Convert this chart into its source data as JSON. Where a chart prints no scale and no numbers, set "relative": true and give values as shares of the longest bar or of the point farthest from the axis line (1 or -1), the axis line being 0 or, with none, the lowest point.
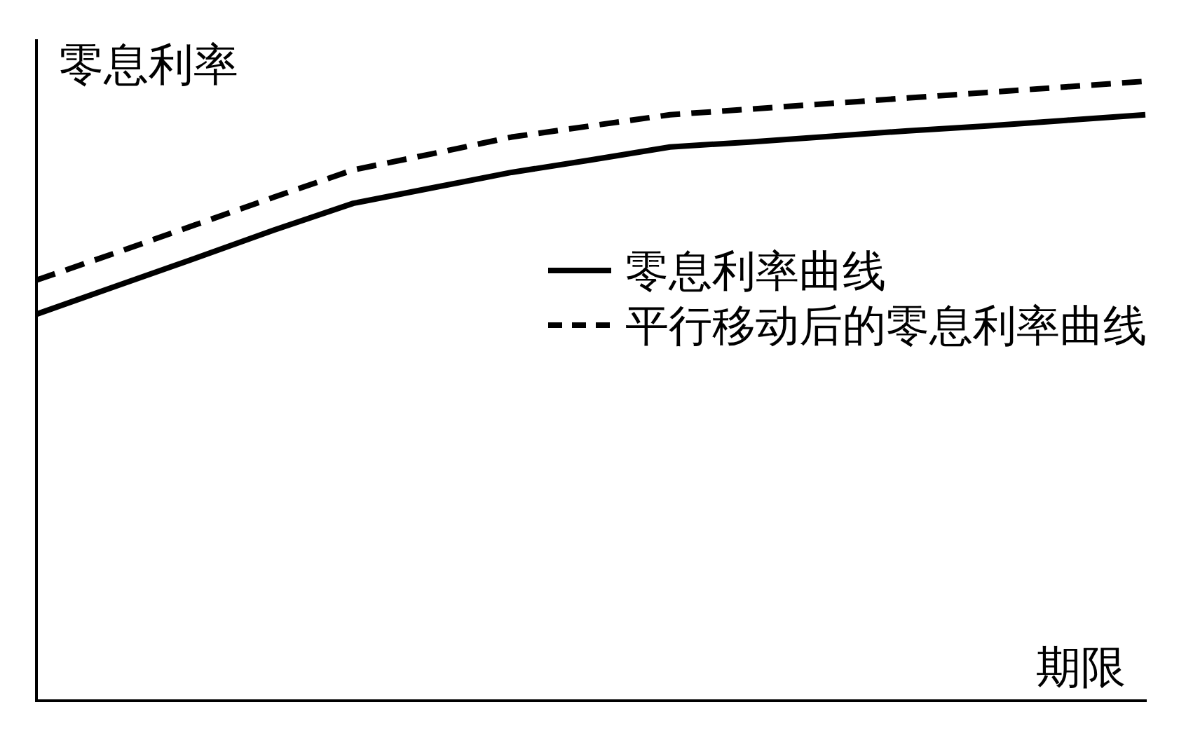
{
  "chart_data": {
    "type": "line",
    "relative": true,
    "ylabel": "零息利率",
    "xlabel": "期限",
    "legend": "right",
    "categories": [
      null,
      null,
      null,
      null,
      null,
      null,
      null,
      null,
      null,
      null,
      null,
      null,
      null,
      null,
      null
    ],
    "series": [
      {
        "name": "零息利率曲线",
        "color": "#000000",
        "line_style": "solid",
        "values": [
          0.624,
          0.669,
          0.714,
          0.76,
          0.803,
          0.828,
          0.853,
          0.873,
          0.894,
          0.902,
          0.911,
          0.92,
          0.928,
          0.937,
          0.946
        ]
      },
      {
        "name": "平行移动后的零息利率曲线",
        "color": "#000000",
        "line_style": "dashed",
        "values": [
          0.679,
          0.723,
          0.768,
          0.813,
          0.857,
          0.883,
          0.91,
          0.928,
          0.946,
          0.955,
          0.964,
          0.973,
          0.982,
          0.991,
          1.0
        ]
      }
    ]
  }
}
